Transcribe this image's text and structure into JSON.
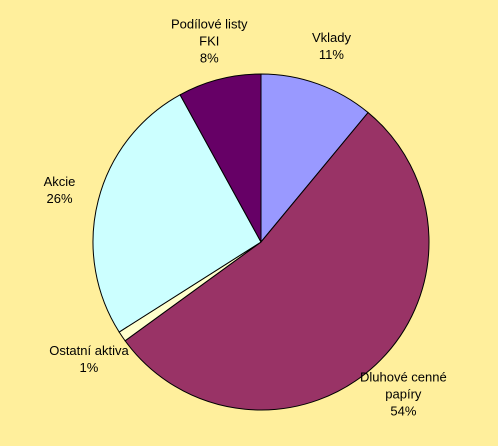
{
  "chart_data": {
    "type": "pie",
    "categories": [
      "Vklady",
      "Dluhové cenné papíry",
      "Ostatní aktiva",
      "Akcie",
      "Podílové listy FKI"
    ],
    "values": [
      11,
      54,
      1,
      26,
      8
    ],
    "value_labels": [
      "11%",
      "54%",
      "1%",
      "26%",
      "8%"
    ],
    "colors": [
      "#9999ff",
      "#993366",
      "#ffffcc",
      "#ccffff",
      "#660066"
    ]
  }
}
